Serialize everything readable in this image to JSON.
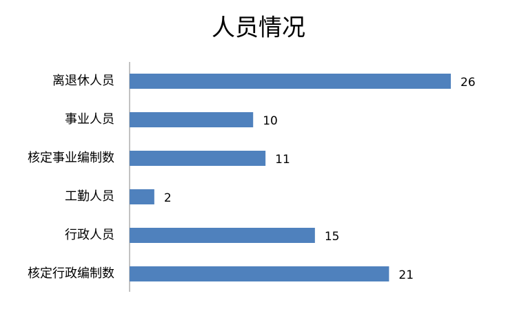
{
  "chart_data": {
    "type": "barh",
    "title": "人员情况",
    "categories": [
      "离退休人员",
      "事业人员",
      "核定事业编制数",
      "工勤人员",
      "行政人员",
      "核定行政编制数"
    ],
    "values": [
      26,
      10,
      11,
      2,
      15,
      21
    ],
    "color": "#4f81bd"
  }
}
